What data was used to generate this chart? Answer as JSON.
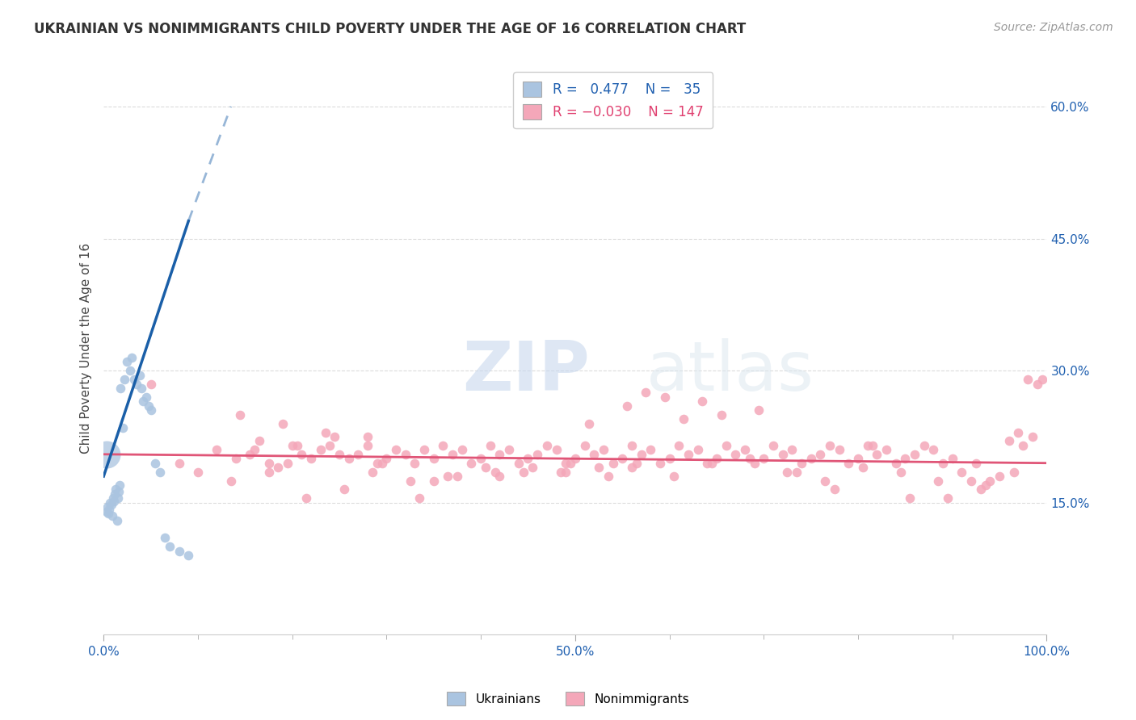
{
  "title": "UKRAINIAN VS NONIMMIGRANTS CHILD POVERTY UNDER THE AGE OF 16 CORRELATION CHART",
  "source": "Source: ZipAtlas.com",
  "ylabel": "Child Poverty Under the Age of 16",
  "xlim": [
    0,
    1.0
  ],
  "ylim": [
    0,
    0.65
  ],
  "r_ukrainian": 0.477,
  "n_ukrainian": 35,
  "r_nonimmigrant": -0.03,
  "n_nonimmigrant": 147,
  "background_color": "#ffffff",
  "grid_color": "#cccccc",
  "ukrainian_color": "#aac4e0",
  "nonimmigrant_color": "#f4a7b9",
  "ukrainian_line_color": "#1a5fa8",
  "nonimmigrant_line_color": "#e05577",
  "watermark_zip": "ZIP",
  "watermark_atlas": "atlas",
  "watermark_color": "#dce8f5",
  "ukrainian_x": [
    0.003,
    0.004,
    0.005,
    0.006,
    0.007,
    0.008,
    0.009,
    0.01,
    0.011,
    0.012,
    0.013,
    0.014,
    0.015,
    0.016,
    0.017,
    0.018,
    0.02,
    0.022,
    0.025,
    0.028,
    0.03,
    0.032,
    0.035,
    0.038,
    0.04,
    0.042,
    0.045,
    0.048,
    0.05,
    0.055,
    0.06,
    0.065,
    0.07,
    0.08,
    0.09
  ],
  "ukrainian_y": [
    0.14,
    0.145,
    0.138,
    0.142,
    0.15,
    0.148,
    0.135,
    0.155,
    0.152,
    0.16,
    0.165,
    0.13,
    0.155,
    0.163,
    0.17,
    0.28,
    0.235,
    0.29,
    0.31,
    0.3,
    0.315,
    0.29,
    0.285,
    0.295,
    0.28,
    0.265,
    0.27,
    0.26,
    0.255,
    0.195,
    0.185,
    0.11,
    0.1,
    0.095,
    0.09
  ],
  "nonimmigrant_x": [
    0.05,
    0.08,
    0.1,
    0.12,
    0.14,
    0.155,
    0.16,
    0.175,
    0.185,
    0.195,
    0.2,
    0.21,
    0.22,
    0.23,
    0.24,
    0.25,
    0.26,
    0.27,
    0.28,
    0.29,
    0.3,
    0.31,
    0.32,
    0.33,
    0.34,
    0.35,
    0.36,
    0.37,
    0.38,
    0.39,
    0.4,
    0.41,
    0.42,
    0.43,
    0.44,
    0.45,
    0.46,
    0.47,
    0.48,
    0.49,
    0.5,
    0.51,
    0.52,
    0.53,
    0.54,
    0.55,
    0.56,
    0.57,
    0.58,
    0.59,
    0.6,
    0.61,
    0.62,
    0.63,
    0.64,
    0.65,
    0.66,
    0.67,
    0.68,
    0.69,
    0.7,
    0.71,
    0.72,
    0.73,
    0.74,
    0.75,
    0.76,
    0.77,
    0.78,
    0.79,
    0.8,
    0.81,
    0.82,
    0.83,
    0.84,
    0.85,
    0.86,
    0.87,
    0.88,
    0.89,
    0.9,
    0.91,
    0.92,
    0.93,
    0.94,
    0.95,
    0.96,
    0.97,
    0.98,
    0.99,
    0.165,
    0.205,
    0.245,
    0.285,
    0.325,
    0.365,
    0.405,
    0.445,
    0.485,
    0.525,
    0.565,
    0.605,
    0.645,
    0.685,
    0.725,
    0.765,
    0.805,
    0.845,
    0.885,
    0.925,
    0.965,
    0.145,
    0.19,
    0.235,
    0.28,
    0.35,
    0.42,
    0.49,
    0.56,
    0.135,
    0.175,
    0.215,
    0.255,
    0.295,
    0.335,
    0.375,
    0.415,
    0.455,
    0.495,
    0.535,
    0.575,
    0.615,
    0.655,
    0.695,
    0.735,
    0.775,
    0.815,
    0.855,
    0.895,
    0.935,
    0.975,
    0.985,
    0.995,
    0.515,
    0.555,
    0.595,
    0.635
  ],
  "nonimmigrant_y": [
    0.285,
    0.195,
    0.185,
    0.21,
    0.2,
    0.205,
    0.21,
    0.195,
    0.19,
    0.195,
    0.215,
    0.205,
    0.2,
    0.21,
    0.215,
    0.205,
    0.2,
    0.205,
    0.215,
    0.195,
    0.2,
    0.21,
    0.205,
    0.195,
    0.21,
    0.2,
    0.215,
    0.205,
    0.21,
    0.195,
    0.2,
    0.215,
    0.205,
    0.21,
    0.195,
    0.2,
    0.205,
    0.215,
    0.21,
    0.195,
    0.2,
    0.215,
    0.205,
    0.21,
    0.195,
    0.2,
    0.215,
    0.205,
    0.21,
    0.195,
    0.2,
    0.215,
    0.205,
    0.21,
    0.195,
    0.2,
    0.215,
    0.205,
    0.21,
    0.195,
    0.2,
    0.215,
    0.205,
    0.21,
    0.195,
    0.2,
    0.205,
    0.215,
    0.21,
    0.195,
    0.2,
    0.215,
    0.205,
    0.21,
    0.195,
    0.2,
    0.205,
    0.215,
    0.21,
    0.195,
    0.2,
    0.185,
    0.175,
    0.165,
    0.175,
    0.18,
    0.22,
    0.23,
    0.29,
    0.285,
    0.22,
    0.215,
    0.225,
    0.185,
    0.175,
    0.18,
    0.19,
    0.185,
    0.185,
    0.19,
    0.195,
    0.18,
    0.195,
    0.2,
    0.185,
    0.175,
    0.19,
    0.185,
    0.175,
    0.195,
    0.185,
    0.25,
    0.24,
    0.23,
    0.225,
    0.175,
    0.18,
    0.185,
    0.19,
    0.175,
    0.185,
    0.155,
    0.165,
    0.195,
    0.155,
    0.18,
    0.185,
    0.19,
    0.195,
    0.18,
    0.275,
    0.245,
    0.25,
    0.255,
    0.185,
    0.165,
    0.215,
    0.155,
    0.155,
    0.17,
    0.215,
    0.225,
    0.29,
    0.24,
    0.26,
    0.27,
    0.265
  ]
}
